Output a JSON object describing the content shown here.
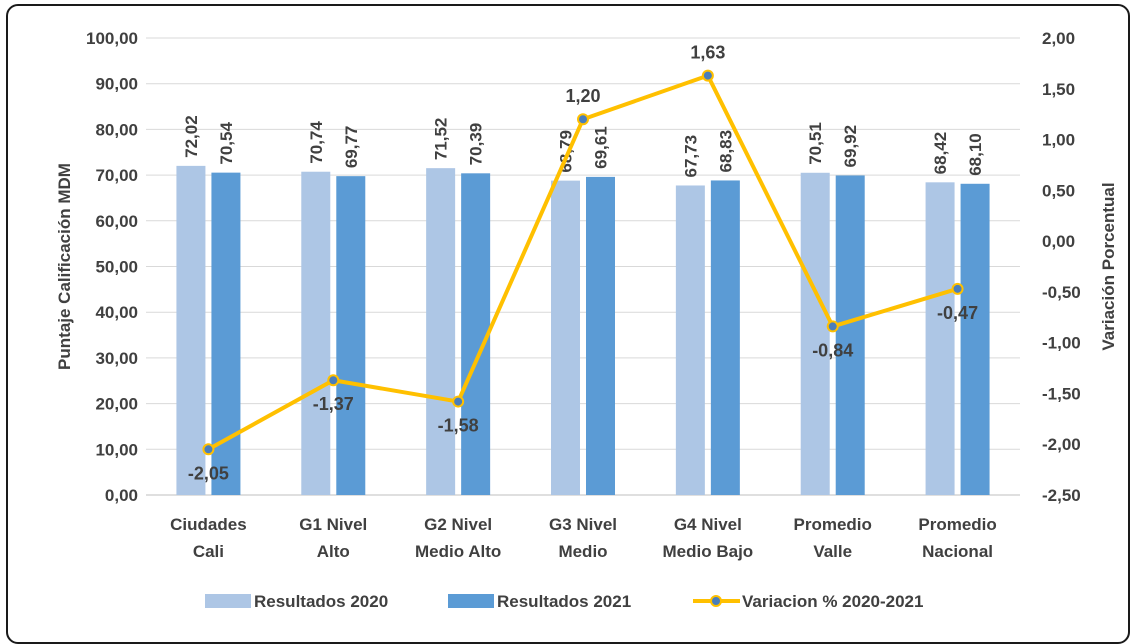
{
  "chart_data": {
    "type": "bar",
    "categories": [
      [
        "Ciudades",
        "Cali"
      ],
      [
        "G1 Nivel",
        "Alto"
      ],
      [
        "G2 Nivel",
        "Medio Alto"
      ],
      [
        "G3 Nivel",
        "Medio"
      ],
      [
        "G4 Nivel",
        "Medio Bajo"
      ],
      [
        "Promedio",
        "Valle"
      ],
      [
        "Promedio",
        "Nacional"
      ]
    ],
    "series": [
      {
        "name": "Resultados 2020",
        "kind": "bar",
        "axis": "left",
        "color": "#adc6e5",
        "values": [
          72.02,
          70.74,
          71.52,
          68.79,
          67.73,
          70.51,
          68.42
        ],
        "labels": [
          "72,02",
          "70,74",
          "71,52",
          "68,79",
          "67,73",
          "70,51",
          "68,42"
        ]
      },
      {
        "name": "Resultados 2021",
        "kind": "bar",
        "axis": "right-bar",
        "color": "#5b9bd5",
        "values": [
          70.54,
          69.77,
          70.39,
          69.61,
          68.83,
          69.92,
          68.1
        ],
        "labels": [
          "70,54",
          "69,77",
          "70,39",
          "69,61",
          "68,83",
          "69,92",
          "68,10"
        ]
      },
      {
        "name": "Variacion % 2020-2021",
        "kind": "line",
        "axis": "right",
        "color": "#ffc000",
        "marker_color": "#4a7ebb",
        "values": [
          -2.05,
          -1.37,
          -1.58,
          1.2,
          1.63,
          -0.84,
          -0.47
        ],
        "labels": [
          "-2,05",
          "-1,37",
          "-1,58",
          "1,20",
          "1,63",
          "-0,84",
          "-0,47"
        ]
      }
    ],
    "ylabel": "Puntaje Calificación MDM",
    "y2label": "Variación Porcentual",
    "ylim": [
      0,
      100
    ],
    "y2lim": [
      -2.5,
      2.0
    ],
    "yticks": [
      "0,00",
      "10,00",
      "20,00",
      "30,00",
      "40,00",
      "50,00",
      "60,00",
      "70,00",
      "80,00",
      "90,00",
      "100,00"
    ],
    "y2ticks": [
      "-2,50",
      "-2,00",
      "-1,50",
      "-1,00",
      "-0,50",
      "0,00",
      "0,50",
      "1,00",
      "1,50",
      "2,00"
    ],
    "grid": true,
    "legend_position": "bottom",
    "colors": {
      "text": "#404040",
      "grid": "#d9d9d9",
      "axis": "#bfbfbf",
      "label": "#404040"
    }
  }
}
